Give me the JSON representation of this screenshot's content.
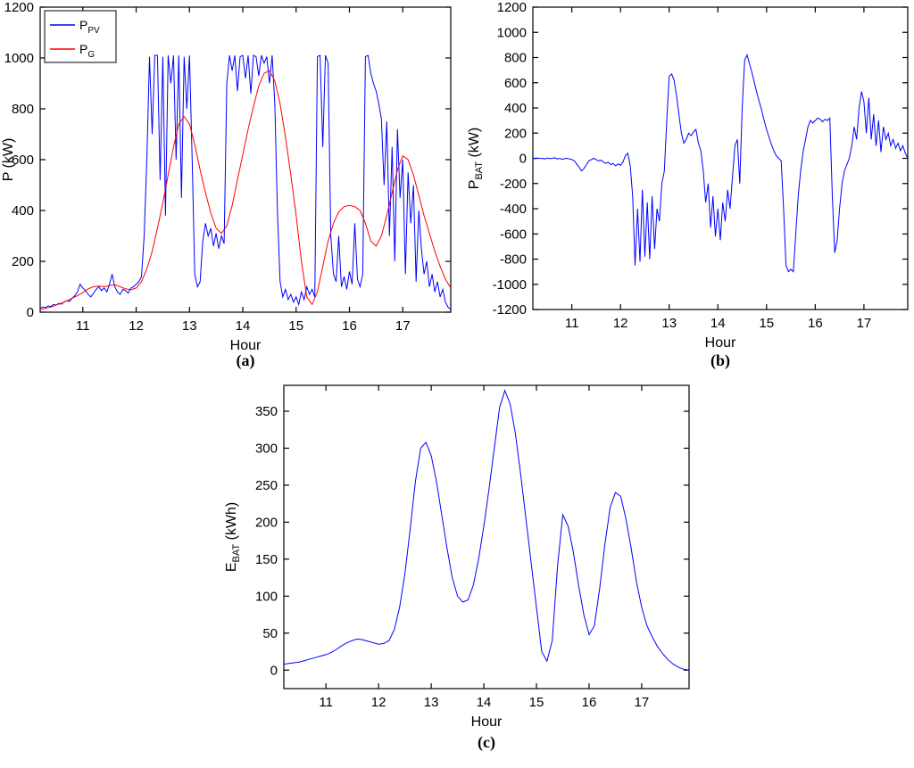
{
  "page": {
    "background": "#ffffff"
  },
  "panel_labels": {
    "a": "(a)",
    "b": "(b)",
    "c": "(c)"
  },
  "chart_data": [
    {
      "id": "chart-a",
      "type": "line",
      "title": "",
      "xlabel": "Hour",
      "ylabel_parts": [
        {
          "text": "P"
        },
        {
          "text": " (kW)"
        }
      ],
      "xlim": [
        10.2,
        17.9
      ],
      "ylim": [
        0,
        1200
      ],
      "xticks": [
        11,
        12,
        13,
        14,
        15,
        16,
        17
      ],
      "yticks": [
        0,
        200,
        400,
        600,
        800,
        1000,
        1200
      ],
      "grid": false,
      "legend": {
        "position": "northwest",
        "items": [
          {
            "label": [
              {
                "text": "P"
              },
              {
                "text": "PV",
                "sub": true
              }
            ],
            "color": "#0000ff"
          },
          {
            "label": [
              {
                "text": "P"
              },
              {
                "text": "G",
                "sub": true
              }
            ],
            "color": "#ff0000"
          }
        ]
      },
      "series": [
        {
          "name": "P_PV",
          "color": "#0000ff",
          "x_start": 10.2,
          "x_step": 0.05,
          "values": [
            15,
            20,
            18,
            25,
            22,
            30,
            28,
            35,
            32,
            40,
            45,
            42,
            55,
            65,
            80,
            110,
            95,
            85,
            70,
            60,
            75,
            90,
            100,
            85,
            95,
            80,
            110,
            150,
            100,
            80,
            70,
            90,
            85,
            75,
            95,
            100,
            110,
            120,
            140,
            300,
            600,
            1005,
            700,
            1010,
            1010,
            520,
            1005,
            380,
            1010,
            900,
            1010,
            600,
            1010,
            450,
            1005,
            800,
            1010,
            600,
            150,
            100,
            120,
            280,
            350,
            300,
            330,
            260,
            310,
            250,
            300,
            270,
            900,
            1010,
            950,
            1010,
            870,
            1005,
            1010,
            920,
            1010,
            860,
            1010,
            1005,
            930,
            1010,
            980,
            1005,
            900,
            1010,
            820,
            400,
            120,
            60,
            90,
            50,
            70,
            40,
            60,
            30,
            80,
            50,
            100,
            70,
            90,
            60,
            1005,
            1010,
            650,
            1010,
            980,
            300,
            150,
            120,
            300,
            100,
            140,
            90,
            160,
            110,
            350,
            130,
            100,
            150,
            1005,
            1010,
            940,
            900,
            870,
            820,
            760,
            500,
            750,
            300,
            650,
            200,
            720,
            450,
            600,
            150,
            550,
            350,
            500,
            120,
            400,
            250,
            150,
            200,
            100,
            150,
            80,
            120,
            60,
            90,
            40,
            20,
            10
          ]
        },
        {
          "name": "P_G",
          "color": "#ff0000",
          "x_start": 10.2,
          "x_step": 0.1,
          "values": [
            10,
            15,
            20,
            28,
            35,
            45,
            55,
            65,
            78,
            92,
            100,
            103,
            100,
            105,
            108,
            100,
            92,
            88,
            95,
            120,
            170,
            240,
            330,
            430,
            540,
            650,
            740,
            770,
            740,
            660,
            560,
            470,
            390,
            330,
            310,
            340,
            420,
            520,
            620,
            720,
            810,
            890,
            940,
            950,
            910,
            820,
            690,
            540,
            380,
            200,
            60,
            30,
            80,
            180,
            280,
            350,
            395,
            415,
            420,
            415,
            400,
            350,
            280,
            260,
            300,
            380,
            470,
            560,
            615,
            600,
            540,
            460,
            380,
            310,
            240,
            180,
            130,
            95
          ]
        }
      ]
    },
    {
      "id": "chart-b",
      "type": "line",
      "title": "",
      "xlabel": "Hour",
      "ylabel_parts": [
        {
          "text": "P"
        },
        {
          "text": "BAT",
          "sub": true
        },
        {
          "text": " (kW)"
        }
      ],
      "xlim": [
        10.2,
        17.9
      ],
      "ylim": [
        -1200,
        1200
      ],
      "xticks": [
        11,
        12,
        13,
        14,
        15,
        16,
        17
      ],
      "yticks": [
        -1200,
        -1000,
        -800,
        -600,
        -400,
        -200,
        0,
        200,
        400,
        600,
        800,
        1000,
        1200
      ],
      "grid": false,
      "series": [
        {
          "name": "P_BAT",
          "color": "#0000ff",
          "x_start": 10.2,
          "x_step": 0.05,
          "values": [
            0,
            -3,
            3,
            -2,
            0,
            -5,
            3,
            -3,
            0,
            5,
            -5,
            0,
            -8,
            -3,
            0,
            -5,
            -10,
            -20,
            -45,
            -70,
            -100,
            -80,
            -50,
            -20,
            -10,
            0,
            -10,
            -20,
            -15,
            -30,
            -40,
            -30,
            -50,
            -40,
            -60,
            -45,
            -55,
            -30,
            20,
            40,
            -60,
            -300,
            -850,
            -400,
            -820,
            -250,
            -780,
            -350,
            -800,
            -300,
            -720,
            -400,
            -500,
            -200,
            -100,
            300,
            650,
            670,
            620,
            500,
            350,
            200,
            120,
            150,
            200,
            180,
            210,
            230,
            120,
            60,
            -100,
            -350,
            -200,
            -550,
            -300,
            -620,
            -400,
            -650,
            -350,
            -500,
            -250,
            -400,
            -150,
            100,
            150,
            -200,
            400,
            780,
            820,
            750,
            680,
            600,
            520,
            450,
            380,
            300,
            230,
            170,
            110,
            60,
            20,
            0,
            -20,
            -400,
            -850,
            -900,
            -880,
            -900,
            -600,
            -300,
            -100,
            50,
            150,
            250,
            300,
            280,
            300,
            320,
            310,
            290,
            310,
            300,
            320,
            -300,
            -750,
            -650,
            -400,
            -200,
            -100,
            -50,
            0,
            100,
            250,
            150,
            400,
            530,
            450,
            200,
            480,
            150,
            350,
            100,
            300,
            50,
            250,
            150,
            200,
            100,
            150,
            80,
            120,
            60,
            100,
            40,
            0
          ]
        }
      ]
    },
    {
      "id": "chart-c",
      "type": "line",
      "title": "",
      "xlabel": "Hour",
      "ylabel_parts": [
        {
          "text": "E"
        },
        {
          "text": "BAT",
          "sub": true
        },
        {
          "text": " (kWh)"
        }
      ],
      "xlim": [
        10.2,
        17.9
      ],
      "ylim": [
        -25,
        385
      ],
      "xticks": [
        11,
        12,
        13,
        14,
        15,
        16,
        17
      ],
      "yticks": [
        0,
        50,
        100,
        150,
        200,
        250,
        300,
        350
      ],
      "grid": false,
      "series": [
        {
          "name": "E_BAT",
          "color": "#0000ff",
          "x_start": 10.2,
          "x_step": 0.1,
          "values": [
            8,
            9,
            10,
            11,
            13,
            15,
            17,
            19,
            21,
            24,
            28,
            33,
            37,
            40,
            42,
            41,
            39,
            37,
            35,
            36,
            40,
            55,
            85,
            130,
            190,
            255,
            300,
            308,
            290,
            255,
            210,
            165,
            125,
            100,
            92,
            95,
            115,
            150,
            195,
            245,
            300,
            355,
            378,
            360,
            320,
            265,
            205,
            145,
            85,
            25,
            12,
            40,
            140,
            210,
            195,
            160,
            115,
            75,
            48,
            60,
            110,
            170,
            220,
            240,
            235,
            205,
            165,
            120,
            85,
            60,
            45,
            32,
            22,
            14,
            8,
            4,
            1,
            0
          ]
        }
      ]
    }
  ]
}
